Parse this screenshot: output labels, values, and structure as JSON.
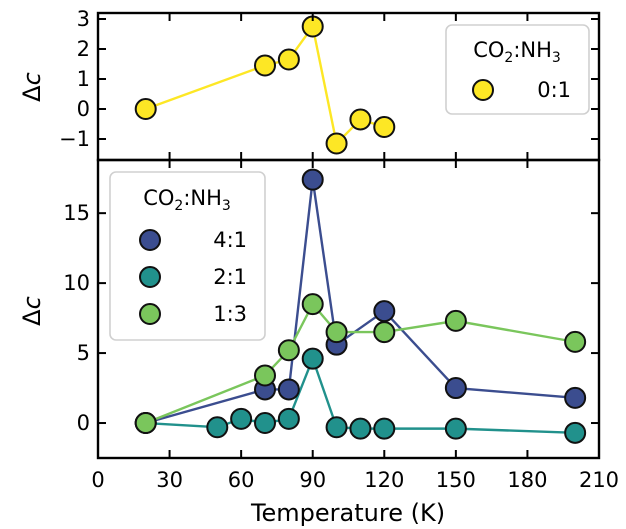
{
  "chart_data": [
    {
      "type": "line",
      "panel": "top",
      "xlabel": "Temperature (K)",
      "ylabel": "Δc",
      "xlim": [
        0,
        210
      ],
      "ylim": [
        -1.7,
        3.2
      ],
      "yticks": [
        -1,
        0,
        1,
        2,
        3
      ],
      "ytick_labels": [
        "−1",
        "0",
        "1",
        "2",
        "3"
      ],
      "legend": {
        "title_parts": [
          "CO",
          "2",
          ":NH",
          "3"
        ],
        "position": "top-right"
      },
      "series": [
        {
          "name": "0:1",
          "color": "#fde725",
          "line_color": "#fde725",
          "x": [
            20,
            70,
            80,
            90,
            100,
            110,
            120
          ],
          "y": [
            0.0,
            1.45,
            1.65,
            2.75,
            -1.15,
            -0.35,
            -0.6
          ]
        }
      ]
    },
    {
      "type": "line",
      "panel": "bottom",
      "xlabel": "Temperature (K)",
      "ylabel": "Δc",
      "xlim": [
        0,
        210
      ],
      "ylim": [
        -2.5,
        18.8
      ],
      "xticks": [
        0,
        30,
        60,
        90,
        120,
        150,
        180,
        210
      ],
      "xtick_labels": [
        "0",
        "30",
        "60",
        "90",
        "120",
        "150",
        "180",
        "210"
      ],
      "yticks": [
        0,
        5,
        10,
        15
      ],
      "ytick_labels": [
        "0",
        "5",
        "10",
        "15"
      ],
      "legend": {
        "title_parts": [
          "CO",
          "2",
          ":NH",
          "3"
        ],
        "position": "top-left"
      },
      "series": [
        {
          "name": "4:1",
          "color": "#3b4d8f",
          "line_color": "#3b4d8f",
          "x": [
            20,
            70,
            80,
            90,
            100,
            120,
            150,
            200
          ],
          "y": [
            0.0,
            2.4,
            2.4,
            17.4,
            5.6,
            8.0,
            2.5,
            1.8
          ]
        },
        {
          "name": "2:1",
          "color": "#21918c",
          "line_color": "#21918c",
          "x": [
            20,
            50,
            60,
            70,
            80,
            90,
            100,
            110,
            120,
            150,
            200
          ],
          "y": [
            0.0,
            -0.3,
            0.3,
            0.0,
            0.3,
            4.6,
            -0.3,
            -0.4,
            -0.4,
            -0.4,
            -0.7
          ]
        },
        {
          "name": "1:3",
          "color": "#7ac65c",
          "line_color": "#7ac65c",
          "x": [
            20,
            70,
            80,
            90,
            100,
            120,
            150,
            200
          ],
          "y": [
            0.0,
            3.4,
            5.2,
            8.5,
            6.5,
            6.5,
            7.3,
            5.8
          ]
        }
      ]
    }
  ],
  "axes": {
    "x_label": "Temperature (K)",
    "y_label_symbol": "Δ",
    "y_label_var": "c"
  }
}
